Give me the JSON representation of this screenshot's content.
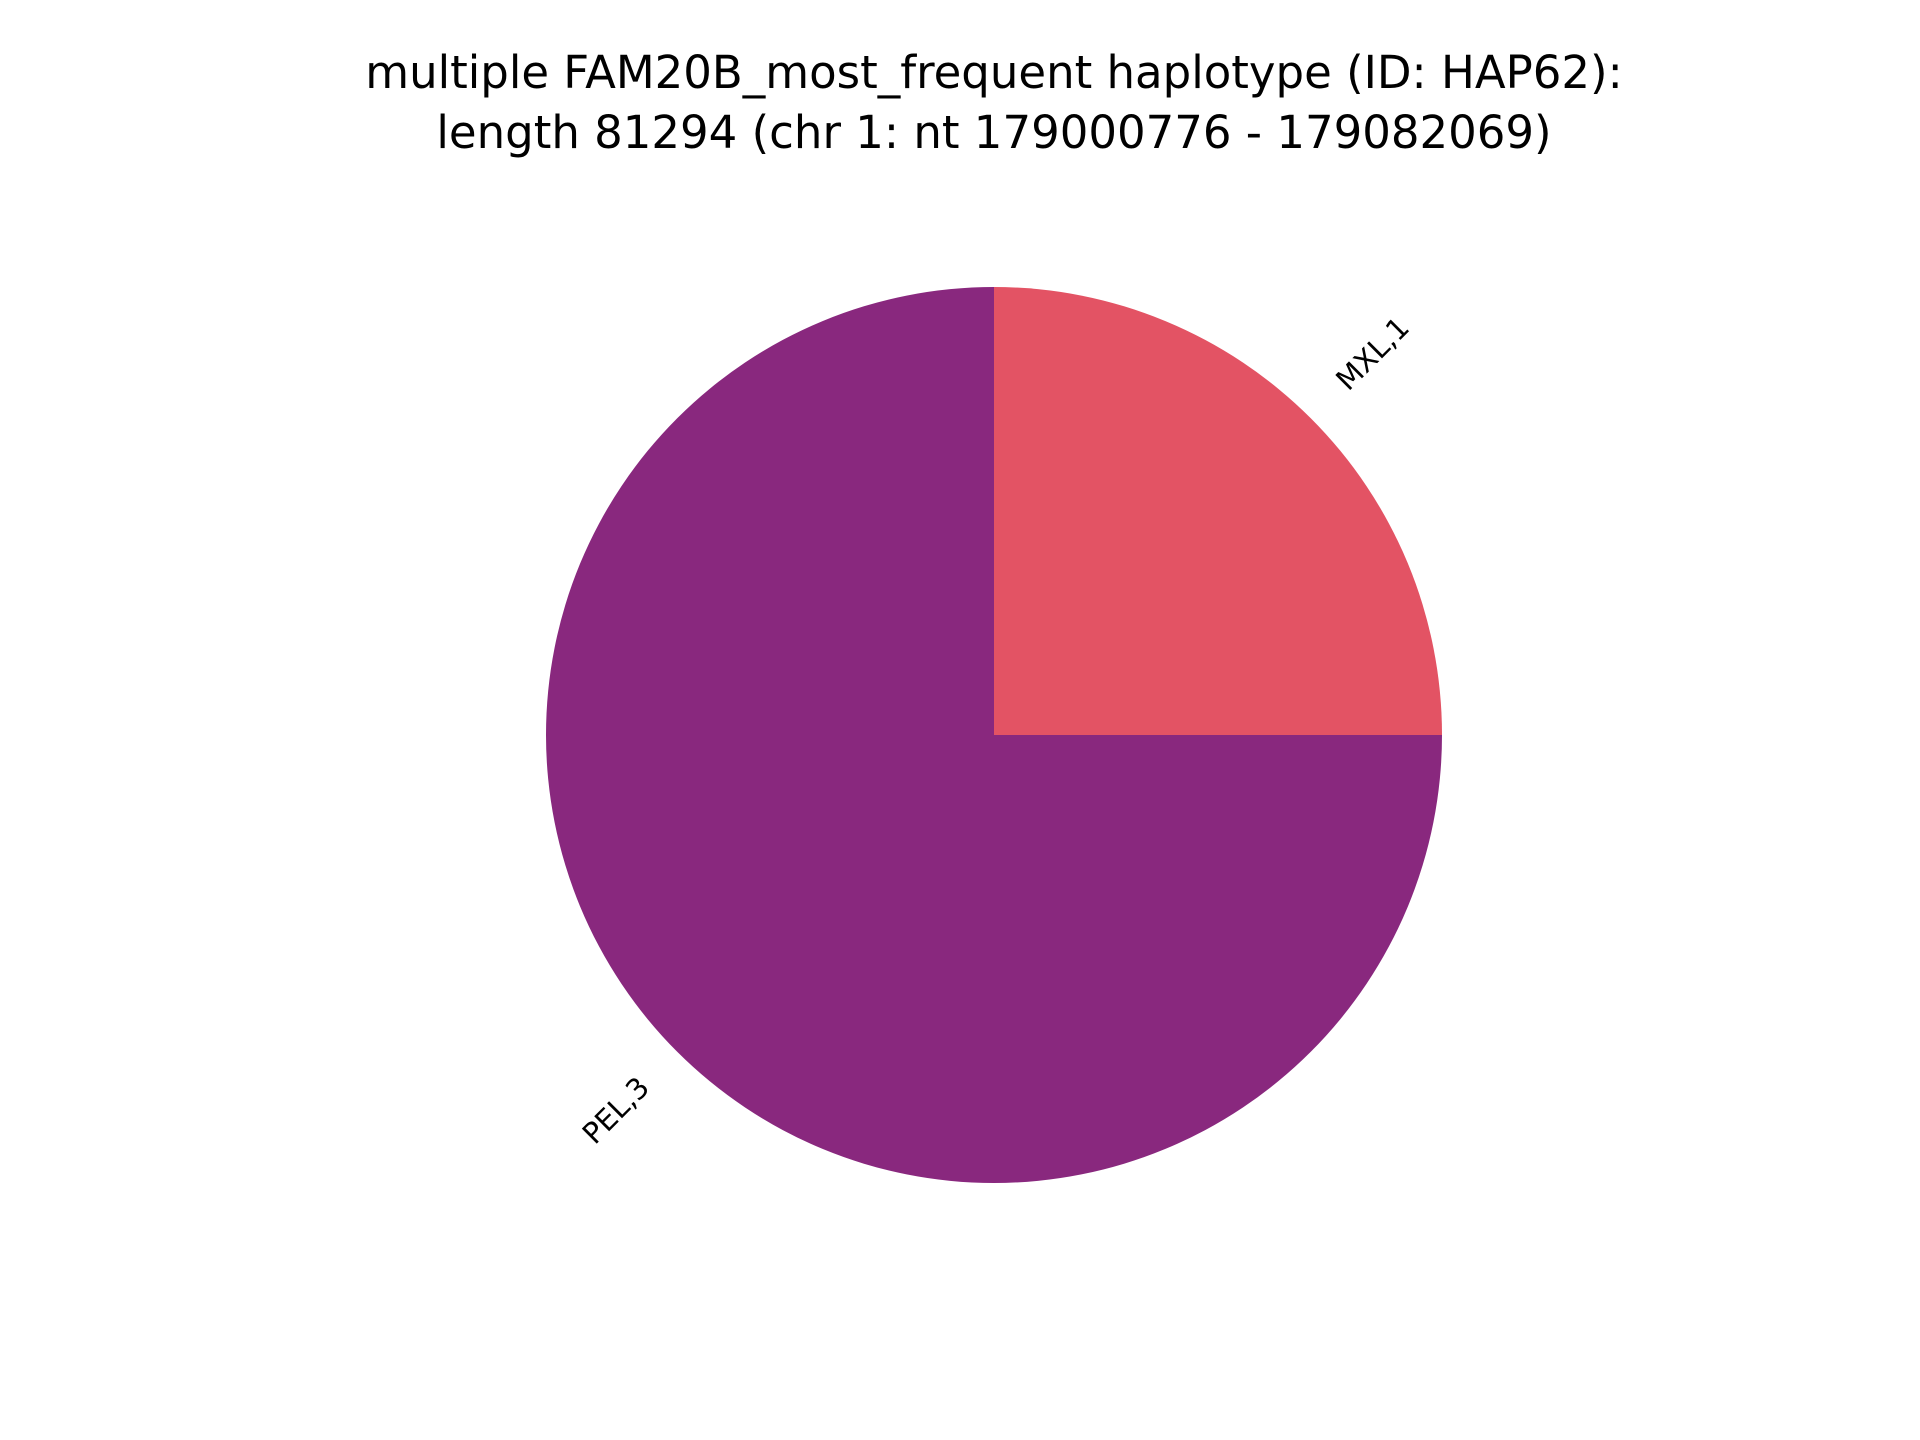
{
  "chart_data": {
    "type": "pie",
    "title_lines": [
      "multiple FAM20B_most_frequent haplotype (ID: HAP62):",
      "length 81294 (chr 1: nt 179000776 - 179082069)"
    ],
    "slices": [
      {
        "label": "MXL,1",
        "value": 1,
        "color": "#e35364"
      },
      {
        "label": "PEL,3",
        "value": 3,
        "color": "#89287e"
      }
    ],
    "start_angle_deg": 0,
    "direction": "counterclockwise",
    "labels_rotated": true
  }
}
